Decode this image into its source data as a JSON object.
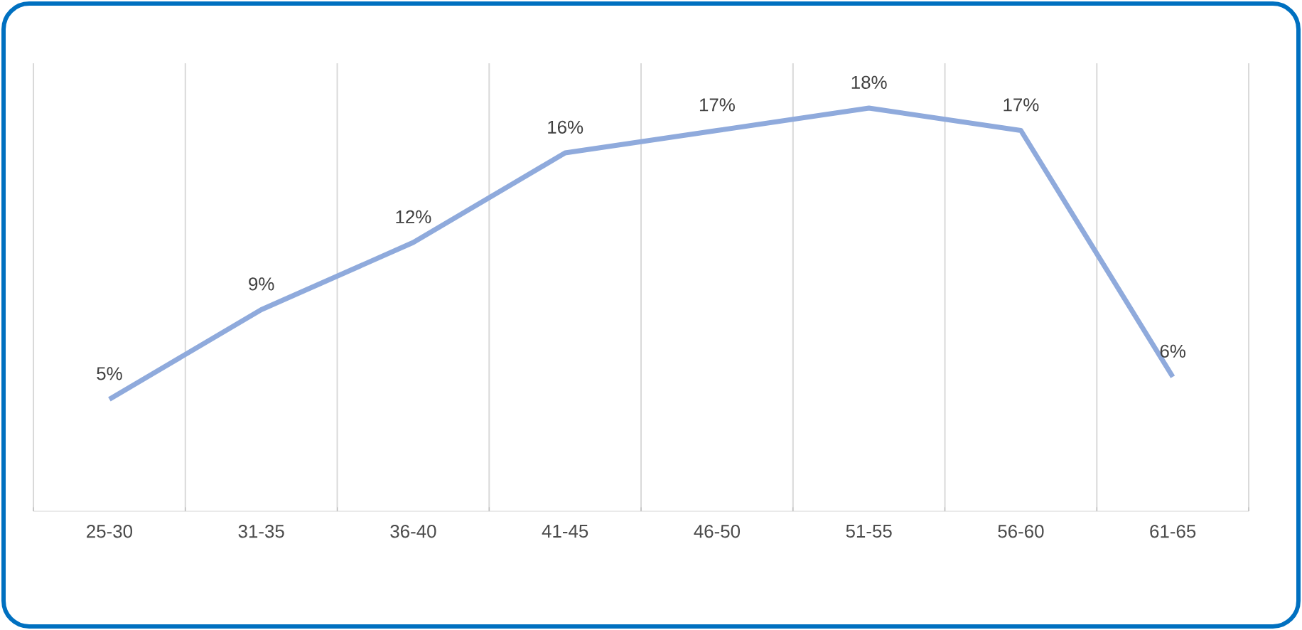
{
  "chart_data": {
    "type": "line",
    "categories": [
      "25-30",
      "31-35",
      "36-40",
      "41-45",
      "46-50",
      "51-55",
      "56-60",
      "61-65"
    ],
    "series": [
      {
        "color": "#8faadc",
        "values": [
          5,
          9,
          12,
          16,
          17,
          18,
          17,
          6
        ],
        "value_labels": [
          "5%",
          "9%",
          "12%",
          "16%",
          "17%",
          "18%",
          "17%",
          "6%"
        ]
      }
    ],
    "ylim": [
      0,
      20
    ],
    "grid": "x",
    "tick_labels": "x",
    "marker": "none",
    "line_style": "solid"
  }
}
